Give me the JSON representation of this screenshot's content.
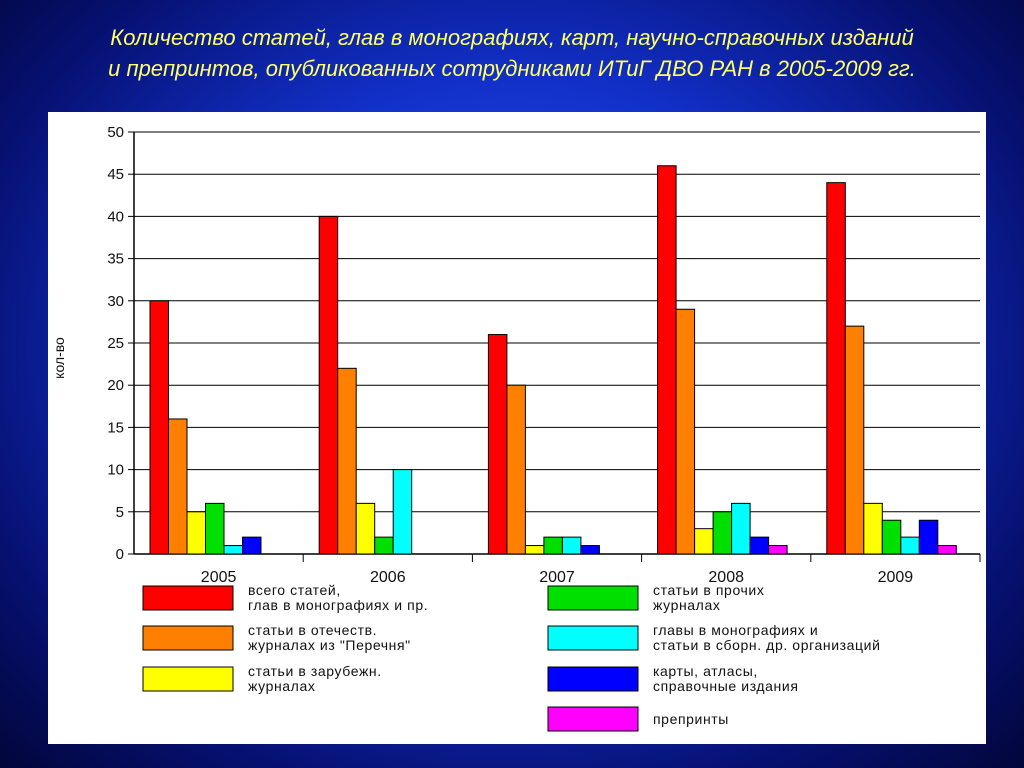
{
  "title_line1": "Количество статей, глав в монографиях, карт, научно-справочных изданий",
  "title_line2": "и препринтов, опубликованных сотрудниками ИТиГ ДВО РАН в 2005-2009 гг.",
  "chart_data": {
    "type": "bar",
    "title": "Количество статей, глав в монографиях, карт, научно-справочных изданий и препринтов, опубликованных сотрудниками ИТиГ ДВО РАН в 2005-2009 гг.",
    "xlabel": "",
    "ylabel": "кол-во",
    "ylim": [
      0,
      50
    ],
    "yticks": [
      0,
      5,
      10,
      15,
      20,
      25,
      30,
      35,
      40,
      45,
      50
    ],
    "grid": true,
    "legend_position": "bottom",
    "categories": [
      "2005",
      "2006",
      "2007",
      "2008",
      "2009"
    ],
    "series": [
      {
        "name_lines": [
          "всего статей,",
          "глав в монографиях и пр."
        ],
        "color": "#ff0000",
        "values": [
          30,
          40,
          26,
          46,
          44
        ]
      },
      {
        "name_lines": [
          "статьи в отечеств.",
          "журналах из \"Перечня\""
        ],
        "color": "#ff8000",
        "values": [
          16,
          22,
          20,
          29,
          27
        ]
      },
      {
        "name_lines": [
          "статьи в зарубежн.",
          "журналах"
        ],
        "color": "#ffff00",
        "values": [
          5,
          6,
          1,
          3,
          6
        ]
      },
      {
        "name_lines": [
          "статьи в прочих",
          "журналах"
        ],
        "color": "#00e000",
        "values": [
          6,
          2,
          2,
          5,
          4
        ]
      },
      {
        "name_lines": [
          "главы в монографиях и",
          "статьи в сборн. др. организаций"
        ],
        "color": "#00ffff",
        "values": [
          1,
          10,
          2,
          6,
          2
        ]
      },
      {
        "name_lines": [
          "карты, атласы,",
          "справочные издания"
        ],
        "color": "#0000ff",
        "values": [
          2,
          0,
          1,
          2,
          4
        ]
      },
      {
        "name_lines": [
          "препринты"
        ],
        "color": "#ff00ff",
        "values": [
          0,
          0,
          0,
          1,
          1
        ]
      }
    ]
  }
}
